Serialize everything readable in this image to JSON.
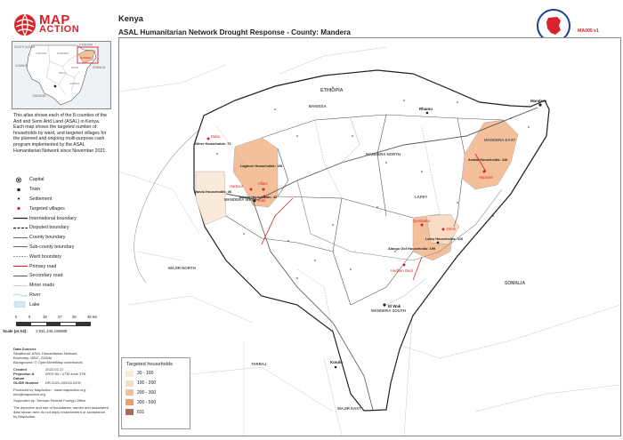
{
  "brand": {
    "line1": "MAP",
    "line2": "ACTION"
  },
  "inset": {
    "labels": [
      {
        "text": "SOUTH SUDAN"
      },
      {
        "text": "ETHIOPIA"
      },
      {
        "text": "UGANDA"
      },
      {
        "text": "SOMALIA"
      },
      {
        "text": "TANZANIA"
      },
      {
        "text": "TURKANA"
      },
      {
        "text": "MARSABIT"
      },
      {
        "text": "MANDERA"
      },
      {
        "text": "WAJIR"
      },
      {
        "text": "ISIOLO"
      },
      {
        "text": "GARISSA"
      }
    ]
  },
  "intro": "This atlas shows each of the 8 counties of the Arid and Semi Arid Land (ASAL) in Kenya. Each map shows the targeted number of households by ward, and targeted villages for the planned and ongoing multi-purpose cash program implemented by the ASAL Humanitarian Network since November 2021.",
  "legend": [
    {
      "label": "Capital",
      "sym": "capital-symbol"
    },
    {
      "label": "Town",
      "sym": "town-symbol"
    },
    {
      "label": "Settlement",
      "sym": "settlement-symbol"
    },
    {
      "label": "Targeted villages",
      "sym": "village-symbol"
    },
    {
      "label": "International boundary",
      "sym": "intl-boundary-symbol"
    },
    {
      "label": "Disputed boundary",
      "sym": "disputed-boundary-symbol"
    },
    {
      "label": "County boundary",
      "sym": "county-boundary-symbol"
    },
    {
      "label": "Sub-county boundary",
      "sym": "subcounty-boundary-symbol"
    },
    {
      "label": "Ward boundary",
      "sym": "ward-boundary-symbol"
    },
    {
      "label": "Primary road",
      "sym": "primary-road-symbol"
    },
    {
      "label": "Secondary road",
      "sym": "secondary-road-symbol"
    },
    {
      "label": "Minor roads",
      "sym": "minor-road-symbol"
    },
    {
      "label": "River",
      "sym": "river-symbol"
    },
    {
      "label": "Lake",
      "sym": "lake-symbol"
    }
  ],
  "scale": {
    "ticks": [
      "0",
      "9",
      "18",
      "27",
      "36",
      "45 km"
    ],
    "ratio_label": "Scale (at A3):",
    "ratio": "1:931,446,195588"
  },
  "credits": {
    "sources_head": "Data Sources",
    "sources": [
      "Situational: ASAL Humanitarian Network,",
      "Boundary: IEBC, GADM",
      "Background: © OpenStreetMap contributors"
    ],
    "rows": [
      {
        "k": "Created",
        "v": "2022-02-17"
      },
      {
        "k": "Projection & Datum",
        "v": "WGS 84 / UTM zone 37N"
      },
      {
        "k": "GLIDE Number",
        "v": "DR-2021-000111-KEN"
      }
    ],
    "supported": "Produced by MapAction · www.mapaction.org · info@mapaction.org",
    "supported2": "Supported by: German Federal Foreign Office",
    "disclaimer": "The depiction and use of boundaries, names and associated data shown here do not imply endorsement or acceptance by MapAction."
  },
  "title": {
    "country": "Kenya",
    "main": "ASAL Humanitarian Network Drought Response - County: Mandera"
  },
  "map_ref": "MA005 v1",
  "map_legend": {
    "title": "Targeted households",
    "classes": [
      {
        "label": "30 - 100",
        "color": "#fbe9d9"
      },
      {
        "label": "100 - 200",
        "color": "#f9dcc3"
      },
      {
        "label": "200 - 300",
        "color": "#f3c09a"
      },
      {
        "label": "300 - 500",
        "color": "#e99f6f"
      },
      {
        "label": "631",
        "color": "#a86c59"
      }
    ]
  },
  "map": {
    "regions": [
      {
        "text": "ETHIOPIA"
      },
      {
        "text": "BANISSA"
      },
      {
        "text": "MANDERA NORTH"
      },
      {
        "text": "MANDERA EAST"
      },
      {
        "text": "LAFEY"
      },
      {
        "text": "MANDERA WEST"
      },
      {
        "text": "MANDERA SOUTH"
      },
      {
        "text": "WAJIR NORTH"
      },
      {
        "text": "TARBAJ"
      },
      {
        "text": "WAJIR EAST"
      },
      {
        "text": "SOMALIA"
      }
    ],
    "towns": [
      {
        "text": "Mandera"
      },
      {
        "text": "Rhamu"
      },
      {
        "text": "El Wak"
      },
      {
        "text": "Kotulo"
      },
      {
        "text": "Takaba"
      },
      {
        "text": "Lafey"
      }
    ],
    "villages": [
      {
        "text": "Dabu"
      },
      {
        "text": "Harbour"
      },
      {
        "text": "Aflam"
      },
      {
        "text": "Kubi"
      },
      {
        "text": "Hapsore"
      },
      {
        "text": "Qumbaloo"
      },
      {
        "text": "Hadhan Gedi"
      },
      {
        "text": "Drine"
      }
    ],
    "hh_labels": [
      {
        "text": "Laghure Households: 196"
      },
      {
        "text": "Arabia Households: 140"
      },
      {
        "text": "Alango Gof Households: 199"
      },
      {
        "text": "Lafey Households: 116"
      },
      {
        "text": "Takaba Households: 43"
      },
      {
        "text": "Dandu Households: 36"
      },
      {
        "text": "Gither Households: 72"
      }
    ]
  }
}
